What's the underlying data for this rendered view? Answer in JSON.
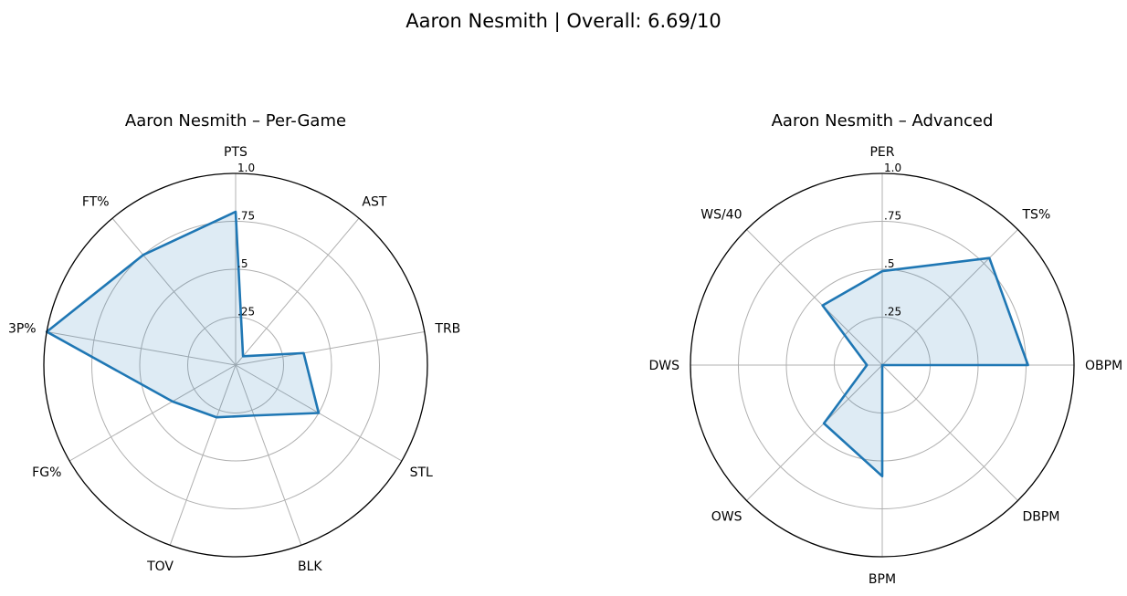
{
  "figure": {
    "suptitle": "Aaron Nesmith | Overall: 6.69/10"
  },
  "chart_data": [
    {
      "type": "radar",
      "title": "Aaron Nesmith – Per-Game",
      "axes": [
        "PTS",
        "AST",
        "TRB",
        "STL",
        "BLK",
        "TOV",
        "FG%",
        "3P%",
        "FT%"
      ],
      "values": [
        0.8,
        0.06,
        0.36,
        0.5,
        0.28,
        0.29,
        0.38,
        1.0,
        0.75
      ],
      "rlim": [
        0,
        1
      ],
      "rticks": [
        0.25,
        0.5,
        0.75,
        1.0
      ],
      "rtick_labels": [
        ".25",
        ".5",
        ".75",
        "1.0"
      ],
      "grid": true,
      "line_color": "#1f77b4",
      "fill_color": "#1f77b4",
      "fill_opacity": 0.15
    },
    {
      "type": "radar",
      "title": "Aaron Nesmith – Advanced",
      "axes": [
        "PER",
        "TS%",
        "OBPM",
        "DBPM",
        "BPM",
        "OWS",
        "DWS",
        "WS/40"
      ],
      "values": [
        0.49,
        0.79,
        0.76,
        0.0,
        0.58,
        0.43,
        0.08,
        0.44
      ],
      "rlim": [
        0,
        1
      ],
      "rticks": [
        0.25,
        0.5,
        0.75,
        1.0
      ],
      "rtick_labels": [
        ".25",
        ".5",
        ".75",
        "1.0"
      ],
      "grid": true,
      "line_color": "#1f77b4",
      "fill_color": "#1f77b4",
      "fill_opacity": 0.15
    }
  ]
}
